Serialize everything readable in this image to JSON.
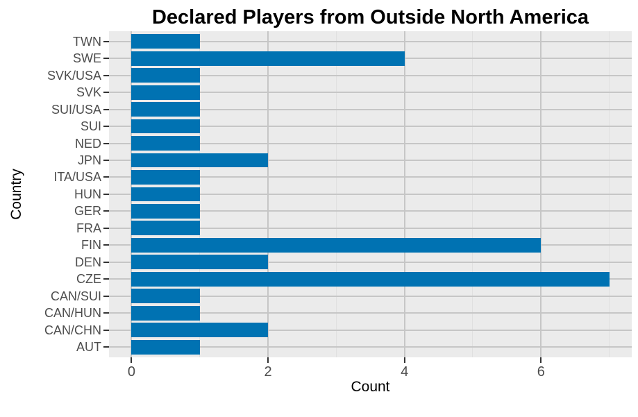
{
  "chart_data": {
    "type": "bar",
    "orientation": "horizontal",
    "title": "Declared Players from Outside North America",
    "xlabel": "Count",
    "ylabel": "Country",
    "categories_top_to_bottom": [
      "TWN",
      "SWE",
      "SVK/USA",
      "SVK",
      "SUI/USA",
      "SUI",
      "NED",
      "JPN",
      "ITA/USA",
      "HUN",
      "GER",
      "FRA",
      "FIN",
      "DEN",
      "CZE",
      "CAN/SUI",
      "CAN/HUN",
      "CAN/CHN",
      "AUT"
    ],
    "values": [
      1,
      4,
      1,
      1,
      1,
      1,
      1,
      2,
      1,
      1,
      1,
      1,
      6,
      2,
      7,
      1,
      1,
      2,
      1
    ],
    "x_ticks": [
      0,
      2,
      4,
      6
    ],
    "x_tick_labels": [
      "0",
      "2",
      "4",
      "6"
    ],
    "x_minor_ticks": [
      1,
      3,
      5,
      7
    ],
    "x_range": [
      -0.33,
      7.33
    ],
    "grid": true,
    "legend": false,
    "colors": {
      "bar": "#0072B2",
      "panel_bg": "#EBEBEB",
      "grid_major": "#C6C6C6",
      "grid_minor": "#E0E0E0",
      "axis_tick": "#333333",
      "axis_text": "#4D4D4D",
      "title_text": "#000000"
    }
  }
}
